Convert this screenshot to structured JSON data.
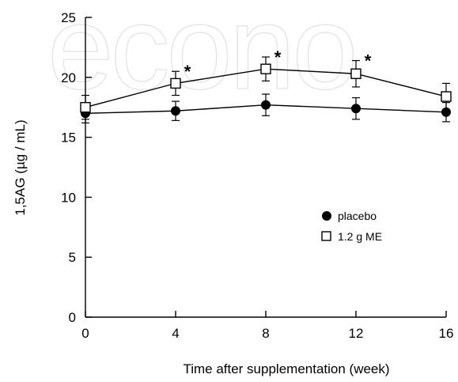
{
  "watermark_text": "econo",
  "chart_data": {
    "type": "line",
    "xlabel": "Time after supplementation (week)",
    "ylabel": "1,5AG (µg / mL)",
    "xlim": [
      0,
      16
    ],
    "ylim": [
      0,
      25
    ],
    "xticks": [
      0,
      4,
      8,
      12,
      16
    ],
    "yticks": [
      0,
      5,
      10,
      15,
      20,
      25
    ],
    "grid": false,
    "legend_position": "middle-right",
    "series": [
      {
        "name": "placebo",
        "marker": "filled-circle",
        "color": "#000000",
        "x": [
          0,
          4,
          8,
          12,
          16
        ],
        "y": [
          17.0,
          17.2,
          17.7,
          17.4,
          17.1
        ],
        "error": [
          0.8,
          0.8,
          0.9,
          0.9,
          0.8
        ]
      },
      {
        "name": "1.2 g ME",
        "marker": "open-square",
        "color": "#000000",
        "x": [
          0,
          4,
          8,
          12,
          16
        ],
        "y": [
          17.5,
          19.5,
          20.7,
          20.3,
          18.4
        ],
        "error": [
          1.0,
          1.0,
          1.0,
          1.1,
          1.1
        ]
      }
    ],
    "annotations": [
      {
        "text": "*",
        "x": 4,
        "series": "1.2 g ME"
      },
      {
        "text": "*",
        "x": 8,
        "series": "1.2 g ME"
      },
      {
        "text": "*",
        "x": 12,
        "series": "1.2 g ME"
      }
    ]
  }
}
